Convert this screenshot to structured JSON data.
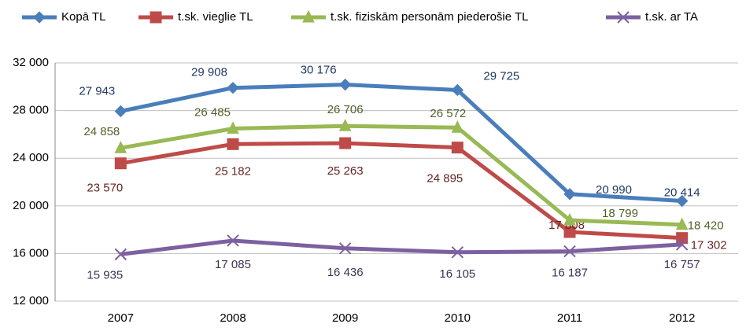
{
  "chart_data": {
    "type": "line",
    "categories": [
      "2007",
      "2008",
      "2009",
      "2010",
      "2011",
      "2012"
    ],
    "series": [
      {
        "name": "Kopā TL",
        "color": "#4a7ebb",
        "marker": "diamond",
        "values": [
          27943,
          29908,
          30176,
          29725,
          20990,
          20414
        ],
        "value_labels": [
          "27 943",
          "29 908",
          "30 176",
          "29 725",
          "20 990",
          "20 414"
        ]
      },
      {
        "name": "t.sk. vieglie TL",
        "color": "#be4b48",
        "marker": "square",
        "values": [
          23570,
          25182,
          25263,
          24895,
          17808,
          17302
        ],
        "value_labels": [
          "23 570",
          "25 182",
          "25 263",
          "24 895",
          "17 808",
          "17 302"
        ]
      },
      {
        "name": "t.sk. fiziskām personām piederošie TL",
        "color": "#98b954",
        "marker": "triangle",
        "values": [
          24858,
          26485,
          26706,
          26572,
          18799,
          18420
        ],
        "value_labels": [
          "24 858",
          "26 485",
          "26 706",
          "26 572",
          "18 799",
          "18 420"
        ]
      },
      {
        "name": "t.sk. ar TA",
        "color": "#7d60a0",
        "marker": "x",
        "values": [
          15935,
          17085,
          16436,
          16105,
          16187,
          16757
        ],
        "value_labels": [
          "15 935",
          "17 085",
          "16 436",
          "16 105",
          "16 187",
          "16 757"
        ]
      }
    ],
    "ylim": [
      12000,
      32000
    ],
    "yticks": [
      {
        "value": 12000,
        "label": "12 000"
      },
      {
        "value": 16000,
        "label": "16 000"
      },
      {
        "value": 20000,
        "label": "20 000"
      },
      {
        "value": 24000,
        "label": "24 000"
      },
      {
        "value": 28000,
        "label": "28 000"
      },
      {
        "value": 32000,
        "label": "32 000"
      }
    ],
    "grid": true,
    "legend": "top"
  }
}
